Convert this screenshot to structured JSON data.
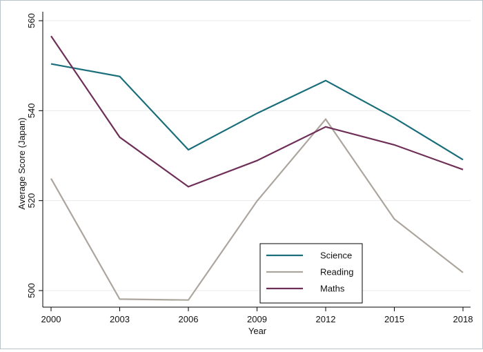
{
  "chart_data": {
    "type": "line",
    "title": "",
    "xlabel": "Year",
    "ylabel": "Average Score (Japan)",
    "x": [
      2000,
      2003,
      2006,
      2009,
      2012,
      2015,
      2018
    ],
    "xticks": [
      "2000",
      "2003",
      "2006",
      "2009",
      "2012",
      "2015",
      "2018"
    ],
    "yticks": [
      "500",
      "520",
      "540",
      "560"
    ],
    "xlim": [
      2000,
      2018
    ],
    "ylim": [
      497.5,
      562
    ],
    "grid": "horizontal",
    "legend_position": "bottom-right",
    "series": [
      {
        "name": "Science",
        "color": "#1a6e7a",
        "values": [
          550.4,
          547.6,
          531.3,
          539.4,
          546.7,
          538.4,
          529.1
        ]
      },
      {
        "name": "Reading",
        "color": "#aca59d",
        "values": [
          524.9,
          498.1,
          497.9,
          519.9,
          538.1,
          515.9,
          504.0
        ]
      },
      {
        "name": "Maths",
        "color": "#6e2f57",
        "values": [
          556.6,
          534.1,
          523.1,
          528.9,
          536.4,
          532.4,
          526.9
        ]
      }
    ]
  }
}
